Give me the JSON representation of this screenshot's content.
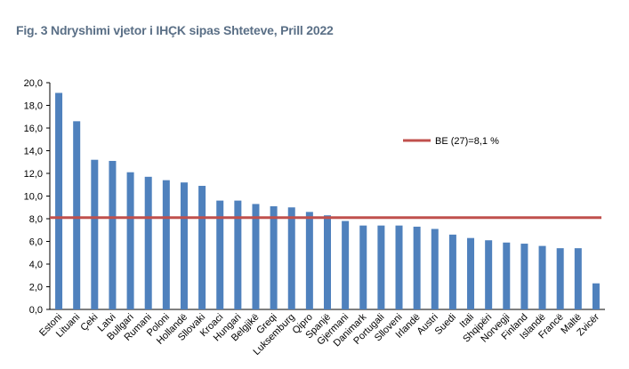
{
  "chart_data": {
    "type": "bar",
    "title": "Fig. 3 Ndryshimi vjetor i IHÇK sipas Shteteve, Prill 2022",
    "categories": [
      "Estoni",
      "Lituani",
      "Çeki",
      "Latvi",
      "Bullgari",
      "Rumani",
      "Poloni",
      "Hollandë",
      "Sllovaki",
      "Kroaci",
      "Hungari",
      "Belgjikë",
      "Greqi",
      "Luksemburg",
      "Qipro",
      "Spanjë",
      "Gjermani",
      "Danimark",
      "Portugali",
      "Slloveni",
      "Irlandë",
      "Austri",
      "Suedi",
      "Itali",
      "Shqipëri",
      "Norvegji",
      "Finland",
      "Islandë",
      "Francë",
      "Maltë",
      "Zvicër"
    ],
    "values": [
      19.1,
      16.6,
      13.2,
      13.1,
      12.1,
      11.7,
      11.4,
      11.2,
      10.9,
      9.6,
      9.6,
      9.3,
      9.1,
      9.0,
      8.6,
      8.3,
      7.8,
      7.4,
      7.4,
      7.4,
      7.3,
      7.1,
      6.6,
      6.3,
      6.1,
      5.9,
      5.8,
      5.6,
      5.4,
      5.4,
      2.3
    ],
    "ylim": [
      0,
      20
    ],
    "yticks": [
      "0,0",
      "2,0",
      "4,0",
      "6,0",
      "8,0",
      "10,0",
      "12,0",
      "14,0",
      "16,0",
      "18,0",
      "20,0"
    ],
    "reference_line": {
      "label": "BE (27)=8,1 %",
      "value": 8.1,
      "color": "#c0504d"
    },
    "bar_color": "#4f81bd",
    "grid": false,
    "legend_position": "top-right"
  }
}
